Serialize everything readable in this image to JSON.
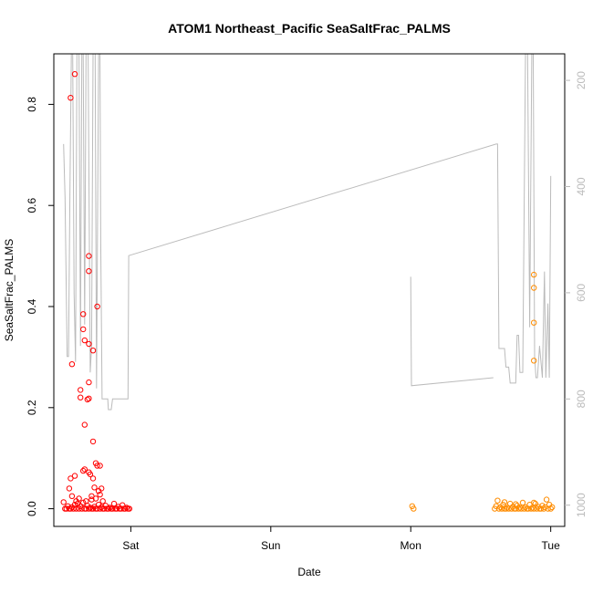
{
  "chart_data": {
    "type": "scatter",
    "title": "ATOM1 Northeast_Pacific SeaSaltFrac_PALMS",
    "xlabel": "Date",
    "ylabel": "SeaSaltFrac_PALMS",
    "x_ticks": [
      {
        "label": "Sat",
        "day": 1.0
      },
      {
        "label": "Sun",
        "day": 2.0
      },
      {
        "label": "Mon",
        "day": 3.0
      },
      {
        "label": "Tue",
        "day": 4.0
      }
    ],
    "xlim_days": [
      0.45,
      4.1
    ],
    "ylim": [
      -0.035,
      0.9
    ],
    "y_ticks": [
      0.0,
      0.2,
      0.4,
      0.6,
      0.8
    ],
    "y2_label": "",
    "y2_ticks": [
      200,
      400,
      600,
      800,
      1000
    ],
    "y2lim": [
      1040,
      150
    ],
    "grid": false,
    "series": [
      {
        "color": "#ff0000",
        "points": [
          [
            0.52,
            0.013
          ],
          [
            0.53,
            0.0
          ],
          [
            0.54,
            0.0
          ],
          [
            0.55,
            0.005
          ],
          [
            0.56,
            0.0
          ],
          [
            0.57,
            0.0
          ],
          [
            0.58,
            0.003
          ],
          [
            0.59,
            0.0
          ],
          [
            0.6,
            0.008
          ],
          [
            0.61,
            0.0
          ],
          [
            0.62,
            0.01
          ],
          [
            0.63,
            0.0
          ],
          [
            0.64,
            0.005
          ],
          [
            0.65,
            0.0
          ],
          [
            0.66,
            0.012
          ],
          [
            0.67,
            0.0
          ],
          [
            0.68,
            0.0
          ],
          [
            0.69,
            0.006
          ],
          [
            0.7,
            0.0
          ],
          [
            0.71,
            0.002
          ],
          [
            0.72,
            0.0
          ],
          [
            0.73,
            0.0
          ],
          [
            0.74,
            0.004
          ],
          [
            0.75,
            0.0
          ],
          [
            0.76,
            0.0
          ],
          [
            0.77,
            0.008
          ],
          [
            0.78,
            0.0
          ],
          [
            0.79,
            0.003
          ],
          [
            0.8,
            0.0
          ],
          [
            0.81,
            0.0
          ],
          [
            0.82,
            0.006
          ],
          [
            0.83,
            0.0
          ],
          [
            0.84,
            0.0
          ],
          [
            0.85,
            0.002
          ],
          [
            0.86,
            0.0
          ],
          [
            0.87,
            0.0
          ],
          [
            0.88,
            0.01
          ],
          [
            0.89,
            0.0
          ],
          [
            0.9,
            0.0
          ],
          [
            0.91,
            0.004
          ],
          [
            0.92,
            0.0
          ],
          [
            0.93,
            0.0
          ],
          [
            0.94,
            0.007
          ],
          [
            0.95,
            0.0
          ],
          [
            0.96,
            0.0
          ],
          [
            0.97,
            0.002
          ],
          [
            0.98,
            0.0
          ],
          [
            0.99,
            0.0
          ],
          [
            0.56,
            0.04
          ],
          [
            0.57,
            0.06
          ],
          [
            0.58,
            0.025
          ],
          [
            0.6,
            0.065
          ],
          [
            0.61,
            0.015
          ],
          [
            0.63,
            0.02
          ],
          [
            0.66,
            0.075
          ],
          [
            0.67,
            0.078
          ],
          [
            0.68,
            0.015
          ],
          [
            0.7,
            0.072
          ],
          [
            0.71,
            0.068
          ],
          [
            0.73,
            0.06
          ],
          [
            0.74,
            0.042
          ],
          [
            0.75,
            0.09
          ],
          [
            0.76,
            0.085
          ],
          [
            0.77,
            0.035
          ],
          [
            0.78,
            0.085
          ],
          [
            0.79,
            0.04
          ],
          [
            0.8,
            0.015
          ],
          [
            0.72,
            0.018
          ],
          [
            0.75,
            0.02
          ],
          [
            0.72,
            0.025
          ],
          [
            0.78,
            0.028
          ],
          [
            0.57,
            0.813
          ],
          [
            0.6,
            0.86
          ],
          [
            0.58,
            0.286
          ],
          [
            0.64,
            0.235
          ],
          [
            0.64,
            0.22
          ],
          [
            0.66,
            0.385
          ],
          [
            0.66,
            0.355
          ],
          [
            0.67,
            0.333
          ],
          [
            0.69,
            0.216
          ],
          [
            0.7,
            0.218
          ],
          [
            0.7,
            0.25
          ],
          [
            0.7,
            0.326
          ],
          [
            0.7,
            0.47
          ],
          [
            0.7,
            0.5
          ],
          [
            0.73,
            0.313
          ],
          [
            0.76,
            0.4
          ],
          [
            0.67,
            0.166
          ],
          [
            0.73,
            0.133
          ]
        ]
      },
      {
        "color": "#ff8c00",
        "points": [
          [
            3.01,
            0.005
          ],
          [
            3.02,
            0.0
          ],
          [
            3.6,
            0.0
          ],
          [
            3.61,
            0.005
          ],
          [
            3.62,
            0.016
          ],
          [
            3.63,
            0.0
          ],
          [
            3.64,
            0.003
          ],
          [
            3.65,
            0.0
          ],
          [
            3.66,
            0.008
          ],
          [
            3.67,
            0.0
          ],
          [
            3.68,
            0.0
          ],
          [
            3.69,
            0.002
          ],
          [
            3.7,
            0.0
          ],
          [
            3.71,
            0.01
          ],
          [
            3.72,
            0.0
          ],
          [
            3.73,
            0.004
          ],
          [
            3.74,
            0.0
          ],
          [
            3.75,
            0.0
          ],
          [
            3.76,
            0.006
          ],
          [
            3.77,
            0.0
          ],
          [
            3.78,
            0.002
          ],
          [
            3.79,
            0.0
          ],
          [
            3.8,
            0.012
          ],
          [
            3.81,
            0.0
          ],
          [
            3.82,
            0.003
          ],
          [
            3.83,
            0.0
          ],
          [
            3.84,
            0.0
          ],
          [
            3.85,
            0.008
          ],
          [
            3.86,
            0.0
          ],
          [
            3.87,
            0.002
          ],
          [
            3.88,
            0.0
          ],
          [
            3.89,
            0.01
          ],
          [
            3.9,
            0.0
          ],
          [
            3.91,
            0.004
          ],
          [
            3.92,
            0.0
          ],
          [
            3.93,
            0.0
          ],
          [
            3.94,
            0.006
          ],
          [
            3.95,
            0.0
          ],
          [
            3.96,
            0.003
          ],
          [
            3.97,
            0.018
          ],
          [
            3.98,
            0.0
          ],
          [
            3.99,
            0.008
          ],
          [
            4.0,
            0.0
          ],
          [
            4.01,
            0.003
          ],
          [
            3.67,
            0.013
          ],
          [
            3.75,
            0.009
          ],
          [
            3.88,
            0.012
          ],
          [
            3.88,
            0.463
          ],
          [
            3.88,
            0.437
          ],
          [
            3.88,
            0.368
          ],
          [
            3.88,
            0.293
          ]
        ]
      }
    ],
    "secondary_line": {
      "color": "#bbbbbb",
      "segments": [
        [
          [
            0.52,
            320
          ],
          [
            0.53,
            420
          ],
          [
            0.545,
            720
          ],
          [
            0.555,
            720
          ],
          [
            0.565,
            420
          ],
          [
            0.575,
            100
          ],
          [
            0.585,
            100
          ],
          [
            0.595,
            600
          ],
          [
            0.605,
            730
          ],
          [
            0.615,
            100
          ],
          [
            0.63,
            100
          ],
          [
            0.64,
            700
          ],
          [
            0.65,
            100
          ],
          [
            0.66,
            100
          ],
          [
            0.67,
            660
          ],
          [
            0.68,
            100
          ],
          [
            0.695,
            100
          ],
          [
            0.71,
            750
          ],
          [
            0.72,
            700
          ],
          [
            0.73,
            100
          ],
          [
            0.745,
            100
          ],
          [
            0.755,
            780
          ],
          [
            0.77,
            100
          ],
          [
            0.78,
            100
          ],
          [
            0.785,
            500
          ],
          [
            0.795,
            800
          ],
          [
            0.81,
            800
          ],
          [
            0.81,
            800
          ],
          [
            0.825,
            800
          ],
          [
            0.835,
            800
          ],
          [
            0.84,
            820
          ],
          [
            0.86,
            820
          ],
          [
            0.87,
            800
          ],
          [
            0.88,
            800
          ],
          [
            0.9,
            800
          ],
          [
            0.92,
            800
          ],
          [
            0.94,
            800
          ],
          [
            0.96,
            800
          ],
          [
            0.98,
            800
          ],
          [
            0.985,
            530
          ],
          [
            3.61,
            320
          ],
          [
            3.62,
            320
          ],
          [
            3.63,
            705
          ],
          [
            3.67,
            705
          ],
          [
            3.68,
            740
          ],
          [
            3.7,
            740
          ],
          [
            3.71,
            770
          ],
          [
            3.75,
            770
          ],
          [
            3.76,
            680
          ],
          [
            3.77,
            680
          ],
          [
            3.78,
            750
          ],
          [
            3.8,
            750
          ],
          [
            3.82,
            100
          ],
          [
            3.835,
            100
          ],
          [
            3.85,
            665
          ],
          [
            3.865,
            100
          ],
          [
            3.875,
            120
          ],
          [
            3.885,
            720
          ],
          [
            3.895,
            760
          ],
          [
            3.905,
            760
          ],
          [
            3.92,
            700
          ],
          [
            3.94,
            760
          ],
          [
            3.955,
            560
          ],
          [
            3.965,
            760
          ],
          [
            3.98,
            620
          ],
          [
            3.99,
            760
          ],
          [
            4.0,
            380
          ]
        ],
        [
          [
            3.0,
            570
          ],
          [
            3.005,
            775
          ],
          [
            3.59,
            760
          ]
        ]
      ]
    }
  }
}
